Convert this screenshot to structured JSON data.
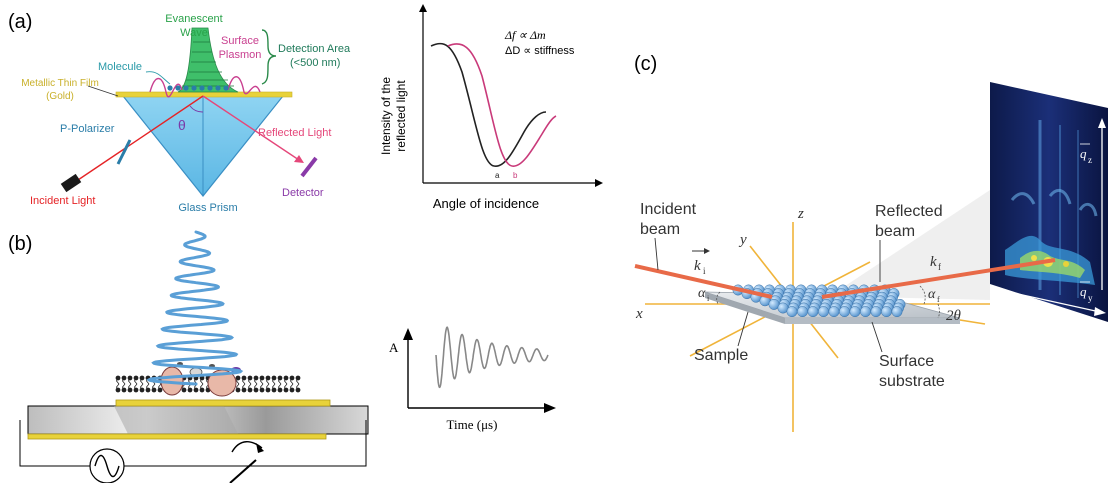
{
  "panel_a": {
    "letter": "(a)",
    "evanescent_1": "Evanescent",
    "evanescent_2": "Wave",
    "surface_1": "Surface",
    "surface_2": "Plasmon",
    "detection_1": "Detection Area",
    "detection_2": "(<500 nm)",
    "molecule": "Molecule",
    "film_1": "Metallic Thin Film",
    "film_2": "(Gold)",
    "theta": "θ",
    "polarizer": "P-Polarizer",
    "reflected": "Reflected Light",
    "incident": "Incident Light",
    "prism": "Glass Prism",
    "detector": "Detector"
  },
  "panel_a_plot": {
    "eq1": "Δf ∝ Δm",
    "eq2": "ΔD  ∝ stiffness",
    "ylabel_1": "Intensity of the",
    "ylabel_2": "reflected light",
    "xlabel": "Angle of incidence",
    "marker_a": "a",
    "marker_b": "b"
  },
  "panel_b": {
    "letter": "(b)",
    "ylabel": "A",
    "xlabel": "Time (μs)"
  },
  "panel_c": {
    "letter": "(c)",
    "incident_1": "Incident",
    "incident_2": "beam",
    "reflected_1": "Reflected",
    "reflected_2": "beam",
    "ki": "k",
    "ki_sub": "i",
    "kf": "k",
    "kf_sub": "f",
    "alpha_i": "α",
    "alpha_i_sub": "i",
    "alpha_f": "α",
    "alpha_f_sub": "f",
    "two_theta": "2θ",
    "axis_x": "x",
    "axis_y": "y",
    "axis_z": "z",
    "sample": "Sample",
    "substrate_1": "Surface",
    "substrate_2": "substrate",
    "qz": "q",
    "qz_sub": "z",
    "qy": "q",
    "qy_sub": "y"
  },
  "colors": {
    "prism": "#7ecbee",
    "gold": "#e8d23a",
    "evanescent": "#3fbf6a",
    "plasmon": "#c94090",
    "incident": "#e52326",
    "beam": "#e86a48",
    "axis": "#f0b43a",
    "sphere": "#6aa5d6",
    "coil": "#5a9fd6"
  }
}
